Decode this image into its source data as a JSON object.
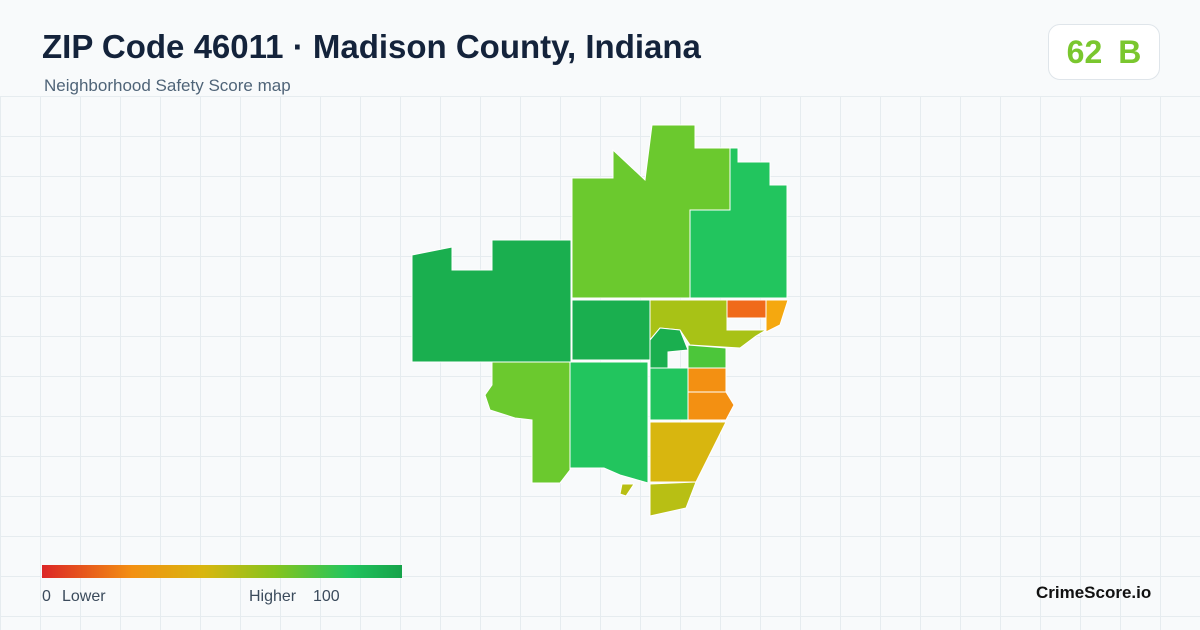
{
  "header": {
    "title": "ZIP Code 46011 · Madison County, Indiana",
    "subtitle": "Neighborhood Safety Score map"
  },
  "score": {
    "value": "62",
    "grade": "B"
  },
  "legend": {
    "min": "0",
    "min_label": "Lower",
    "max_label": "Higher",
    "max": "100"
  },
  "brand": "CrimeScore.io"
}
